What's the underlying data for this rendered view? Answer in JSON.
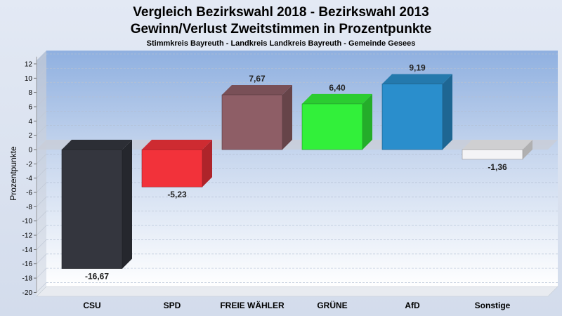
{
  "chart_data": {
    "type": "bar",
    "title": "Vergleich Bezirkswahl 2018 - Bezirkswahl 2013",
    "subtitle": "Gewinn/Verlust Zweitstimmen in Prozentpunkte",
    "subsubtitle": "Stimmkreis Bayreuth - Landkreis Landkreis Bayreuth - Gemeinde Gesees",
    "ylabel": "Prozentpunkte",
    "xlabel": "",
    "ylim": [
      -20,
      13
    ],
    "yticks": [
      12,
      10,
      8,
      6,
      4,
      2,
      0,
      -2,
      -4,
      -6,
      -8,
      -10,
      -12,
      -14,
      -16,
      -18,
      -20
    ],
    "categories": [
      "CSU",
      "SPD",
      "FREIE WÄHLER",
      "GRÜNE",
      "AfD",
      "Sonstige"
    ],
    "values": [
      -16.67,
      -5.23,
      7.67,
      6.4,
      9.19,
      -1.36
    ],
    "value_labels": [
      "-16,67",
      "-5,23",
      "7,67",
      "6,40",
      "9,19",
      "-1,36"
    ],
    "colors": [
      "#34363e",
      "#f2323a",
      "#8e5e66",
      "#32f03a",
      "#2a8ecc",
      "#f4f4f6"
    ],
    "grid": true,
    "legend": "none"
  }
}
